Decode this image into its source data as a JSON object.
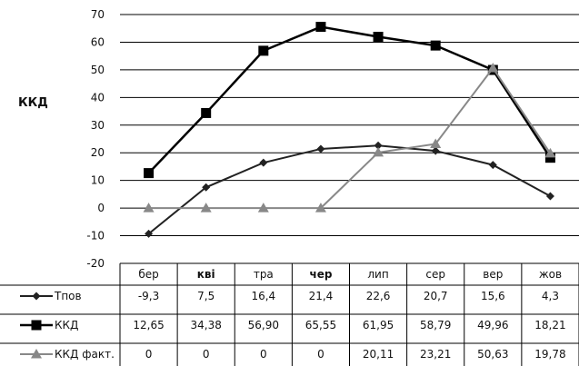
{
  "chart_data": {
    "type": "line",
    "ylabel": "ККД",
    "ylim": [
      -20,
      70
    ],
    "yticks": [
      -20,
      -10,
      0,
      10,
      20,
      30,
      40,
      50,
      60,
      70
    ],
    "grid": true,
    "legend": "data-table-left",
    "categories": [
      "бер",
      "кві",
      "тра",
      "чер",
      "лип",
      "сер",
      "вер",
      "жов"
    ],
    "bold_categories": [
      "кві",
      "чер"
    ],
    "series": [
      {
        "name": "Тпов",
        "marker": "diamond",
        "color": "#222222",
        "values": [
          -9.3,
          7.5,
          16.4,
          21.4,
          22.6,
          20.7,
          15.6,
          4.3
        ],
        "labels": [
          "-9,3",
          "7,5",
          "16,4",
          "21,4",
          "22,6",
          "20,7",
          "15,6",
          "4,3"
        ]
      },
      {
        "name": "ККД",
        "marker": "square",
        "color": "#000000",
        "values": [
          12.65,
          34.38,
          56.9,
          65.55,
          61.95,
          58.79,
          49.96,
          18.21
        ],
        "labels": [
          "12,65",
          "34,38",
          "56,90",
          "65,55",
          "61,95",
          "58,79",
          "49,96",
          "18,21"
        ]
      },
      {
        "name": "ККД факт.",
        "marker": "triangle",
        "color": "#888888",
        "values": [
          0,
          0,
          0,
          0,
          20.11,
          23.21,
          50.63,
          19.78
        ],
        "labels": [
          "0",
          "0",
          "0",
          "0",
          "20,11",
          "23,21",
          "50,63",
          "19,78"
        ]
      }
    ]
  }
}
